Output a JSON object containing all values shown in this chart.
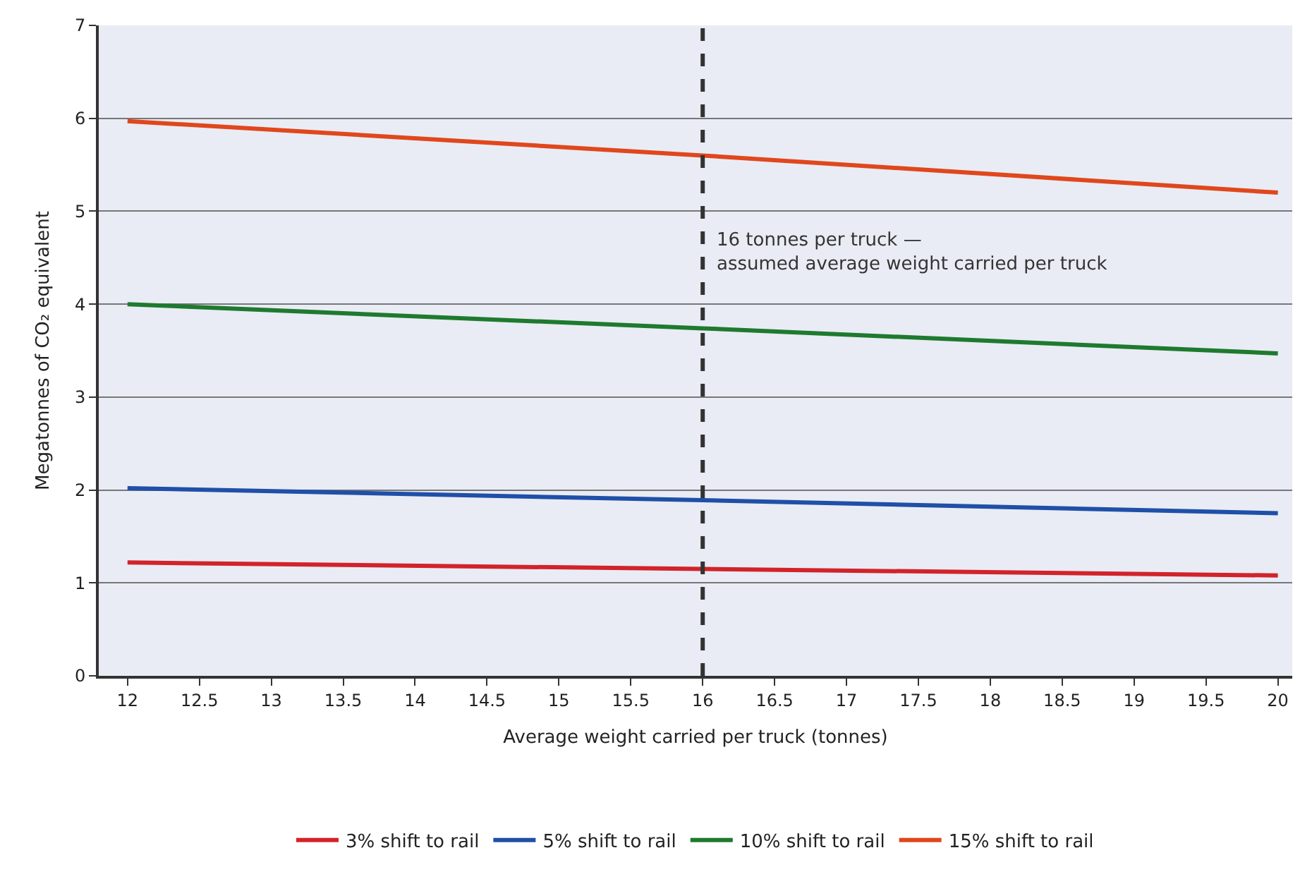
{
  "chart_data": {
    "type": "line",
    "xlabel": "Average weight carried per truck (tonnes)",
    "ylabel": "Megatonnes of CO₂ equivalent",
    "x": [
      12,
      16,
      20
    ],
    "series": [
      {
        "name": "3% shift to rail",
        "color": "#d2232a",
        "values": [
          1.22,
          1.15,
          1.08
        ]
      },
      {
        "name": "5% shift to rail",
        "color": "#1f4fa8",
        "values": [
          2.02,
          1.89,
          1.75
        ]
      },
      {
        "name": "10% shift to rail",
        "color": "#1e7a2e",
        "values": [
          4.0,
          3.74,
          3.47
        ]
      },
      {
        "name": "15% shift to rail",
        "color": "#e0471c",
        "values": [
          5.97,
          5.6,
          5.2
        ]
      }
    ],
    "xlim": [
      11.8,
      20.1
    ],
    "xticks": [
      12,
      12.5,
      13,
      13.5,
      14,
      14.5,
      15,
      15.5,
      16,
      16.5,
      17,
      17.5,
      18,
      18.5,
      19,
      19.5,
      20
    ],
    "ylim": [
      0,
      7
    ],
    "yticks": [
      0,
      1,
      2,
      3,
      4,
      5,
      6,
      7
    ],
    "grid": "y",
    "legend": "bottom",
    "marker": "none",
    "line_style": "solid",
    "ref_lines": [
      {
        "axis": "x",
        "value": 16,
        "label": "16 tonnes per truck —\nassumed average weight carried per truck",
        "color": "#333333",
        "line_style": "dashed"
      }
    ]
  }
}
